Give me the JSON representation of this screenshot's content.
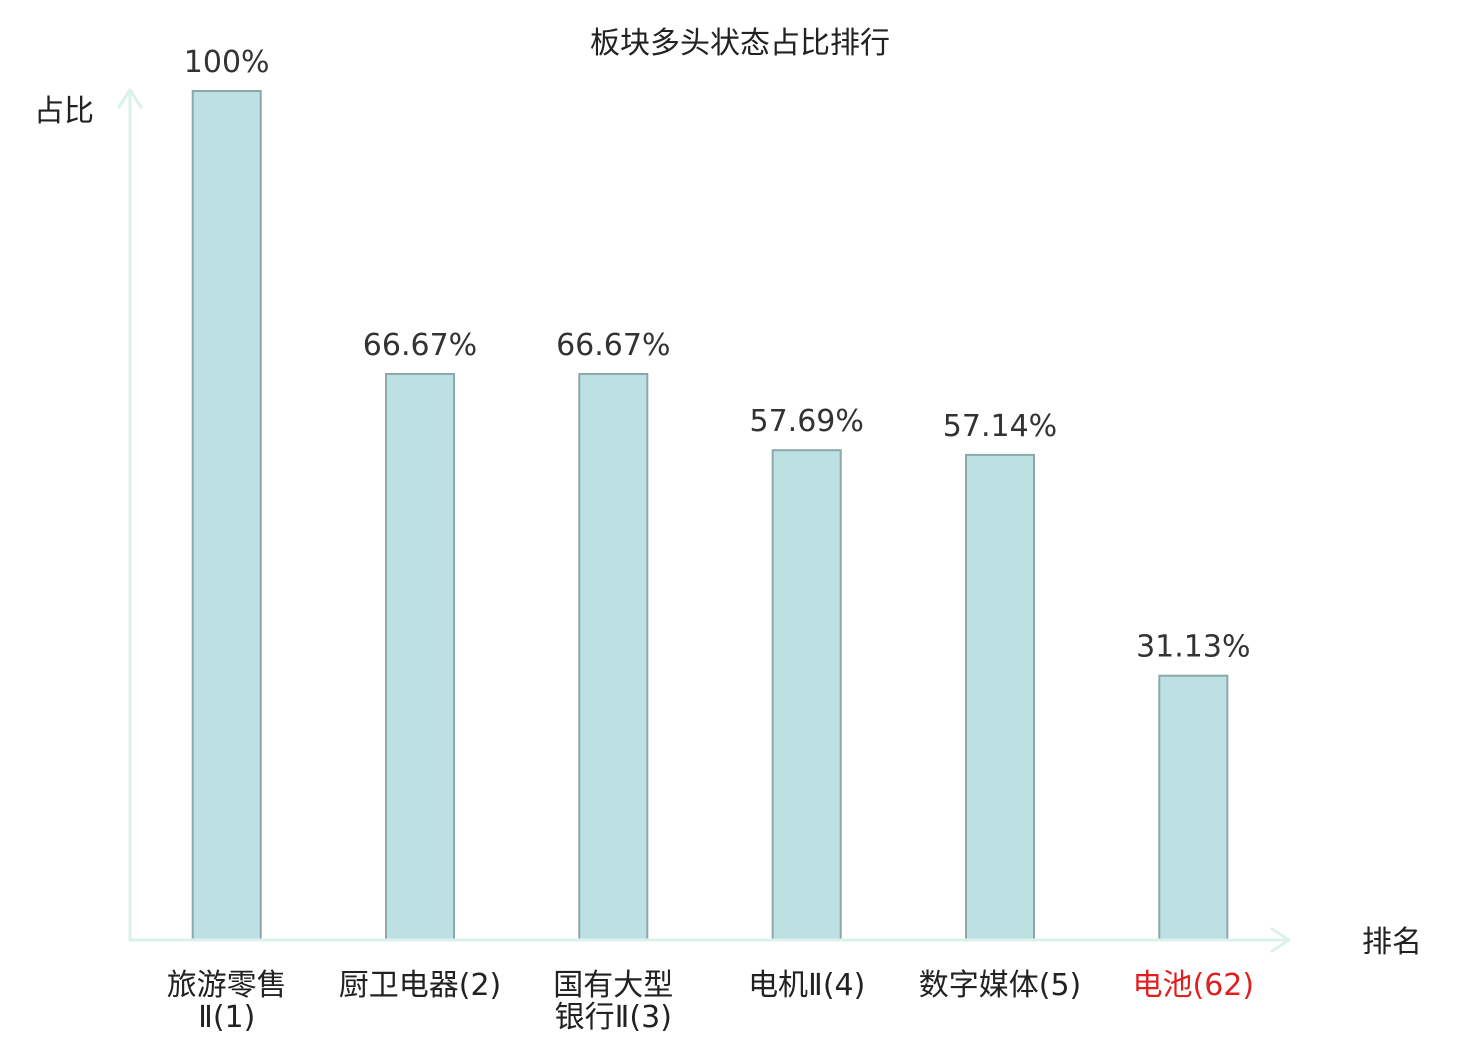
{
  "chart_data": {
    "type": "bar",
    "title": "板块多头状态占比排行",
    "xlabel": "排名",
    "ylabel": "占比",
    "categories": [
      "旅游零售Ⅱ(1)",
      "厨卫电器(2)",
      "国有大型银行Ⅱ(3)",
      "电机Ⅱ(4)",
      "数字媒体(5)",
      "电池(62)"
    ],
    "values": [
      100,
      66.67,
      66.67,
      57.69,
      57.14,
      31.13
    ],
    "data_labels": [
      "100%",
      "66.67%",
      "66.67%",
      "57.69%",
      "57.14%",
      "31.13%"
    ],
    "ylim": [
      0,
      100
    ],
    "grid": false,
    "legend": false,
    "colors": {
      "bar_fill": "#bde0e3",
      "bar_stroke": "#8ca8aa",
      "axis": "#dcf0ec",
      "category_colors": [
        "#222222",
        "#222222",
        "#222222",
        "#222222",
        "#222222",
        "#e02020"
      ]
    }
  }
}
